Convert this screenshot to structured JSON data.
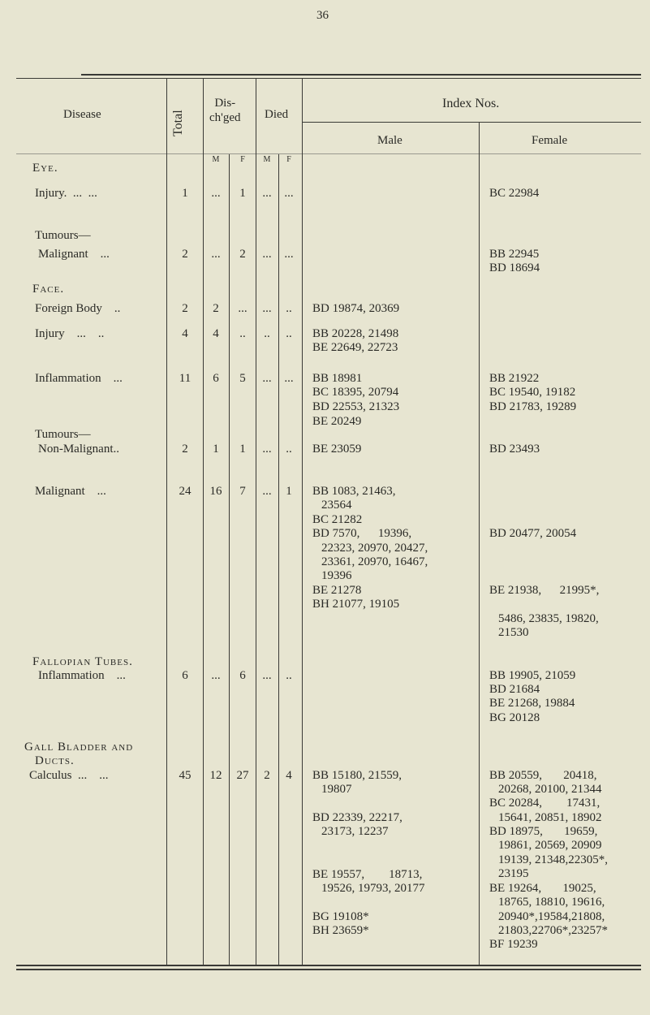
{
  "page_number": "36",
  "header": {
    "disease": "Disease",
    "total": "Total",
    "discharged": "Dis-\nch'ged",
    "died": "Died",
    "index": "Index Nos.",
    "male": "Male",
    "female": "Female",
    "sub": [
      "M",
      "F",
      "M",
      "F"
    ]
  },
  "eye": {
    "title": "Eye.",
    "injury": {
      "label": "Injury.  ...  ...",
      "total": "1",
      "dm": "...",
      "df": "1",
      "xm": "...",
      "xf": "...",
      "female": [
        "BC 22984"
      ]
    },
    "tumours": "Tumours—",
    "malignant": {
      "label": "Malignant    ...",
      "total": "2",
      "dm": "...",
      "df": "2",
      "xm": "...",
      "xf": "...",
      "female": [
        "BB 22945",
        "BD 18694"
      ]
    }
  },
  "face": {
    "title": "Face.",
    "foreign": {
      "label": "Foreign Body    ..",
      "total": "2",
      "dm": "2",
      "df": "...",
      "xm": "...",
      "xf": "..",
      "male": [
        "BD 19874, 20369"
      ]
    },
    "injury": {
      "label": "Injury    ...    ..",
      "total": "4",
      "dm": "4",
      "df": "..",
      "xm": "..",
      "xf": "..",
      "male": [
        "BB 20228, 21498",
        "BE 22649, 22723"
      ]
    },
    "inflammation": {
      "label": "Inflammation    ...",
      "total": "11",
      "dm": "6",
      "df": "5",
      "xm": "...",
      "xf": "...",
      "male": [
        "BB 18981",
        "BC 18395, 20794",
        "BD 22553, 21323",
        "BE 20249"
      ],
      "female": [
        "BB 21922",
        "BC 19540, 19182",
        "BD 21783, 19289"
      ]
    },
    "tumours": "Tumours—",
    "nonmalignant": {
      "label": "Non-Malignant..",
      "total": "2",
      "dm": "1",
      "df": "1",
      "xm": "...",
      "xf": "..",
      "male": [
        "BE 23059"
      ],
      "female": [
        "BD 23493"
      ]
    },
    "malignant": {
      "label": "Malignant    ...",
      "total": "24",
      "dm": "16",
      "df": "7",
      "xm": "...",
      "xf": "1",
      "male": [
        "BB 1083, 21463,",
        "23564",
        "BC 21282",
        "BD 7570,      19396,",
        "22323, 20970, 20427,",
        "23361, 20970, 16467,",
        "19396",
        "BE 21278",
        "BH 21077, 19105"
      ],
      "female": [
        "BD 20477, 20054",
        "BE 21938,      21995*,",
        "5486, 23835, 19820,",
        "21530"
      ]
    }
  },
  "fallopian": {
    "title": "Fallopian Tubes.",
    "inflammation": {
      "label": "Inflammation    ...",
      "total": "6",
      "dm": "...",
      "df": "6",
      "xm": "...",
      "xf": "..",
      "female": [
        "BB 19905, 21059",
        "BD 21684",
        "BE 21268, 19884",
        "BG 20128"
      ]
    }
  },
  "gall": {
    "title": "Gall Bladder and",
    "title2": "Ducts.",
    "calculus": {
      "label": "Calculus  ...    ...",
      "total": "45",
      "dm": "12",
      "df": "27",
      "xm": "2",
      "xf": "4",
      "male": [
        "BB 15180, 21559,",
        "19807",
        "BD 22339, 22217,",
        "23173, 12237",
        "BE 19557,        18713,",
        "19526, 19793, 20177",
        "BG 19108*",
        "BH 23659*"
      ],
      "female": [
        "BB 20559,       20418,",
        "20268, 20100, 21344",
        "BC 20284,        17431,",
        "15641, 20851, 18902",
        "BD 18975,       19659,",
        "19861, 20569, 20909",
        "19139, 21348,22305*,",
        "23195",
        "BE 19264,       19025,",
        "18765, 18810, 19616,",
        "20940*,19584,21808,",
        "21803,22706*,23257*",
        "BF 19239"
      ]
    }
  }
}
